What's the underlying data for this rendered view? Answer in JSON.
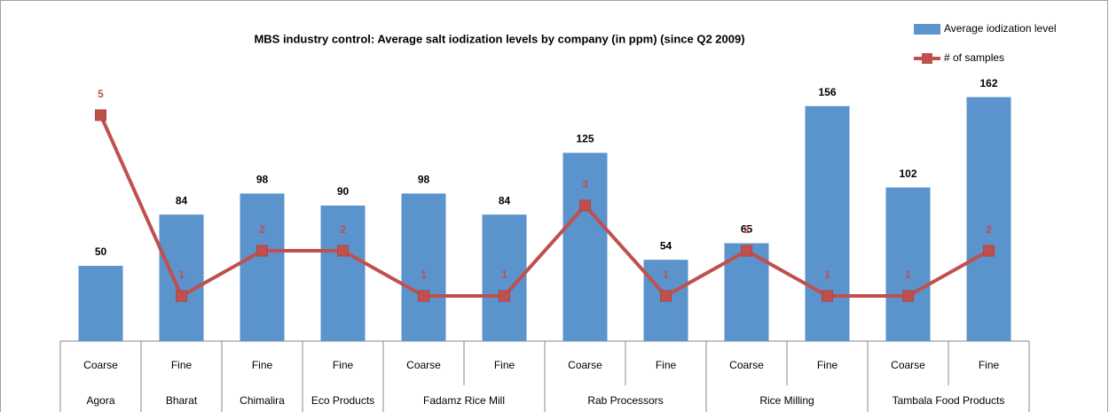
{
  "chart_data": {
    "type": "bar-line",
    "title": "MBS industry control: Average salt iodization levels by company (in ppm) (since Q2 2009)",
    "groups": [
      {
        "label": "Agora",
        "categories": [
          "Coarse"
        ]
      },
      {
        "label": "Bharat",
        "categories": [
          "Fine"
        ]
      },
      {
        "label": "Chimalira",
        "categories": [
          "Fine"
        ]
      },
      {
        "label": "Eco Products",
        "categories": [
          "Fine"
        ]
      },
      {
        "label": "Fadamz Rice Mill",
        "categories": [
          "Coarse",
          "Fine"
        ]
      },
      {
        "label": "Rab Processors",
        "categories": [
          "Coarse",
          "Fine"
        ]
      },
      {
        "label": "Rice Milling",
        "categories": [
          "Coarse",
          "Fine"
        ]
      },
      {
        "label": "Tambala Food Products",
        "categories": [
          "Coarse",
          "Fine"
        ]
      }
    ],
    "series": [
      {
        "name": "Average iodization level",
        "type": "bar",
        "color": "#5b93cc",
        "values": [
          50,
          84,
          98,
          90,
          98,
          84,
          125,
          54,
          65,
          156,
          102,
          162
        ]
      },
      {
        "name": "# of samples",
        "type": "line",
        "axis": "y2",
        "color": "#c0504d",
        "values": [
          5,
          1,
          2,
          2,
          1,
          1,
          3,
          1,
          2,
          1,
          1,
          2
        ]
      }
    ],
    "ylim": [
      0,
      180
    ],
    "y2lim": [
      0,
      6
    ],
    "legend": "top-right"
  }
}
